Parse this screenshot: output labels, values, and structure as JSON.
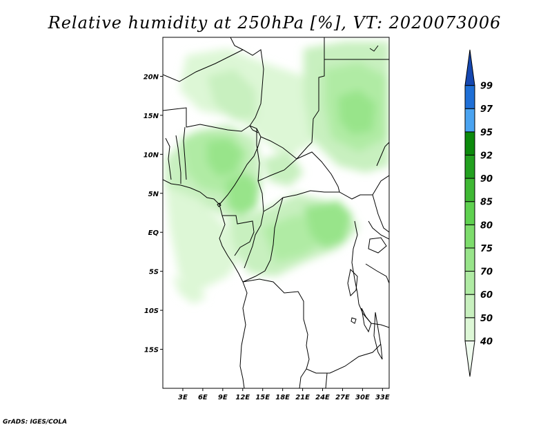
{
  "title": "Relative humidity at 250hPa [%], VT: 2020073006",
  "credit": "GrADS: IGES/COLA",
  "chart_data": {
    "type": "map-contour",
    "variable": "Relative humidity",
    "level": "250hPa",
    "units": "%",
    "valid_time": "2020073006",
    "lon_range": [
      0,
      34
    ],
    "lat_range": [
      -20,
      25
    ],
    "lon_ticks": [
      "3E",
      "6E",
      "9E",
      "12E",
      "15E",
      "18E",
      "21E",
      "24E",
      "27E",
      "30E",
      "33E"
    ],
    "lat_ticks": [
      "20N",
      "15N",
      "10N",
      "5N",
      "EQ",
      "5S",
      "10S",
      "15S"
    ],
    "colorbar": {
      "levels": [
        "40",
        "50",
        "60",
        "70",
        "75",
        "80",
        "85",
        "90",
        "92",
        "95",
        "97",
        "99"
      ],
      "colors": [
        "#f0fcef",
        "#ddf7d6",
        "#c8f0bf",
        "#b0eba4",
        "#98e48a",
        "#7ddc6c",
        "#5fd150",
        "#3fb834",
        "#22a01f",
        "#0c8a0c",
        "#4aa3f0",
        "#1f6fd6",
        "#1547b0"
      ]
    }
  }
}
